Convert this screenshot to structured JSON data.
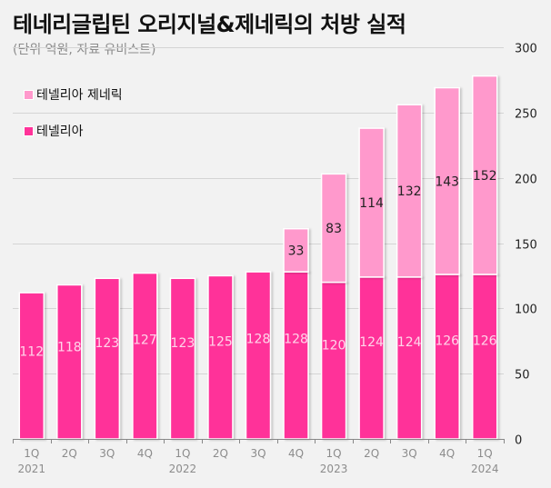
{
  "chart_data": {
    "type": "bar",
    "stacked": true,
    "title": "테네리글립틴 오리지널&제네릭의 처방 실적",
    "subtitle": "(단위 억원, 자료 유비스트)",
    "categories": [
      "1Q",
      "2Q",
      "3Q",
      "4Q",
      "1Q",
      "2Q",
      "3Q",
      "4Q",
      "1Q",
      "2Q",
      "3Q",
      "4Q",
      "1Q"
    ],
    "category_years": [
      "2021",
      "",
      "",
      "",
      "2022",
      "",
      "",
      "",
      "2023",
      "",
      "",
      "",
      "2024"
    ],
    "series": [
      {
        "name": "테넬리아",
        "color": "#ff3399",
        "label_color": "#ffd6ea",
        "values": [
          112,
          118,
          123,
          127,
          123,
          125,
          128,
          128,
          120,
          124,
          124,
          126,
          126
        ]
      },
      {
        "name": "테넬리아 제네릭",
        "color": "#ff99cc",
        "label_color": "#222222",
        "values": [
          null,
          null,
          null,
          null,
          null,
          null,
          null,
          33,
          83,
          114,
          132,
          143,
          152
        ]
      }
    ],
    "legend": {
      "placement": "top-left",
      "order": [
        "테넬리아 제네릭",
        "테넬리아"
      ]
    },
    "ylim": [
      0,
      300
    ],
    "yticks": [
      0,
      50,
      100,
      150,
      200,
      250,
      300
    ],
    "y_axis_side": "right",
    "grid": true,
    "xlabel": "",
    "ylabel": ""
  }
}
